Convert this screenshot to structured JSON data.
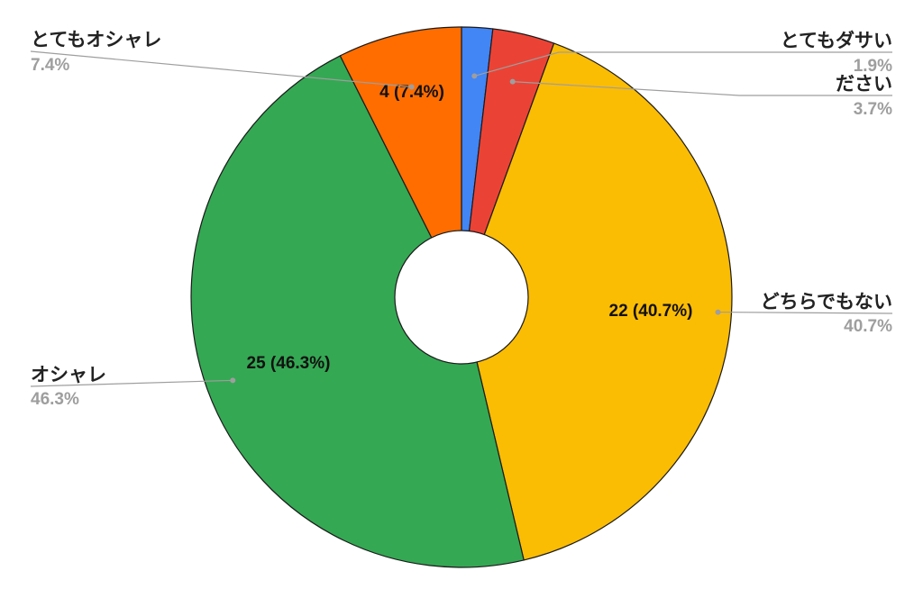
{
  "chart_data": {
    "type": "pie",
    "donut": true,
    "title": "",
    "slices": [
      {
        "label": "とてもダサい",
        "value": 1,
        "percent_text": "1.9%",
        "slice_text": "",
        "color": "#4285f4"
      },
      {
        "label": "ださい",
        "value": 2,
        "percent_text": "3.7%",
        "slice_text": "",
        "color": "#ea4335"
      },
      {
        "label": "どちらでもない",
        "value": 22,
        "percent_text": "40.7%",
        "slice_text": "22 (40.7%)",
        "color": "#fbbc04"
      },
      {
        "label": "オシャレ",
        "value": 25,
        "percent_text": "46.3%",
        "slice_text": "25 (46.3%)",
        "color": "#34a853"
      },
      {
        "label": "とてもオシャレ",
        "value": 4,
        "percent_text": "7.4%",
        "slice_text": "4 (7.4%)",
        "color": "#ff6d01"
      }
    ],
    "legend": "none"
  }
}
